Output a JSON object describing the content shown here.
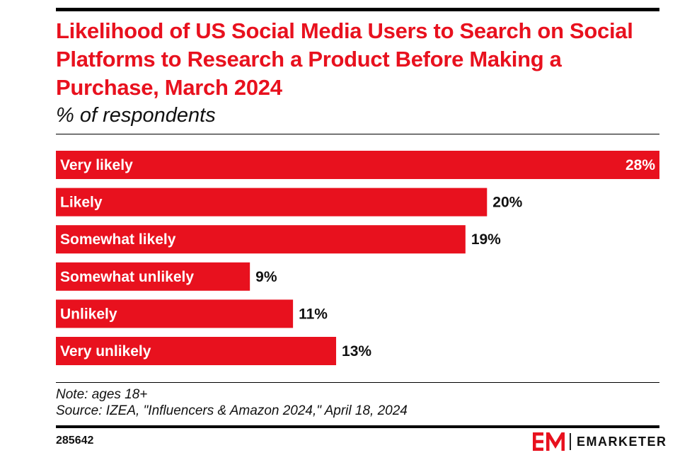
{
  "header": {
    "title": "Likelihood of US Social Media Users to Search on Social Platforms to Research a Product Before Making a Purchase, March 2024",
    "subtitle": "% of respondents"
  },
  "chart_data": {
    "type": "bar",
    "orientation": "horizontal",
    "title": "Likelihood of US Social Media Users to Search on Social Platforms to Research a Product Before Making a Purchase, March 2024",
    "subtitle": "% of respondents",
    "categories": [
      "Very likely",
      "Likely",
      "Somewhat likely",
      "Somewhat unlikely",
      "Unlikely",
      "Very unlikely"
    ],
    "values": [
      28,
      20,
      19,
      9,
      11,
      13
    ],
    "value_labels": [
      "28%",
      "20%",
      "19%",
      "9%",
      "11%",
      "13%"
    ],
    "xlim": [
      0,
      28
    ],
    "xlabel": "",
    "ylabel": "",
    "grid": false,
    "bar_color": "#e8111e"
  },
  "footer": {
    "note": "Note: ages 18+",
    "source": "Source: IZEA, \"Influencers & Amazon 2024,\" April 18, 2024",
    "chart_id": "285642",
    "brand": "EMARKETER"
  },
  "colors": {
    "accent": "#e8111e",
    "text": "#111111"
  }
}
